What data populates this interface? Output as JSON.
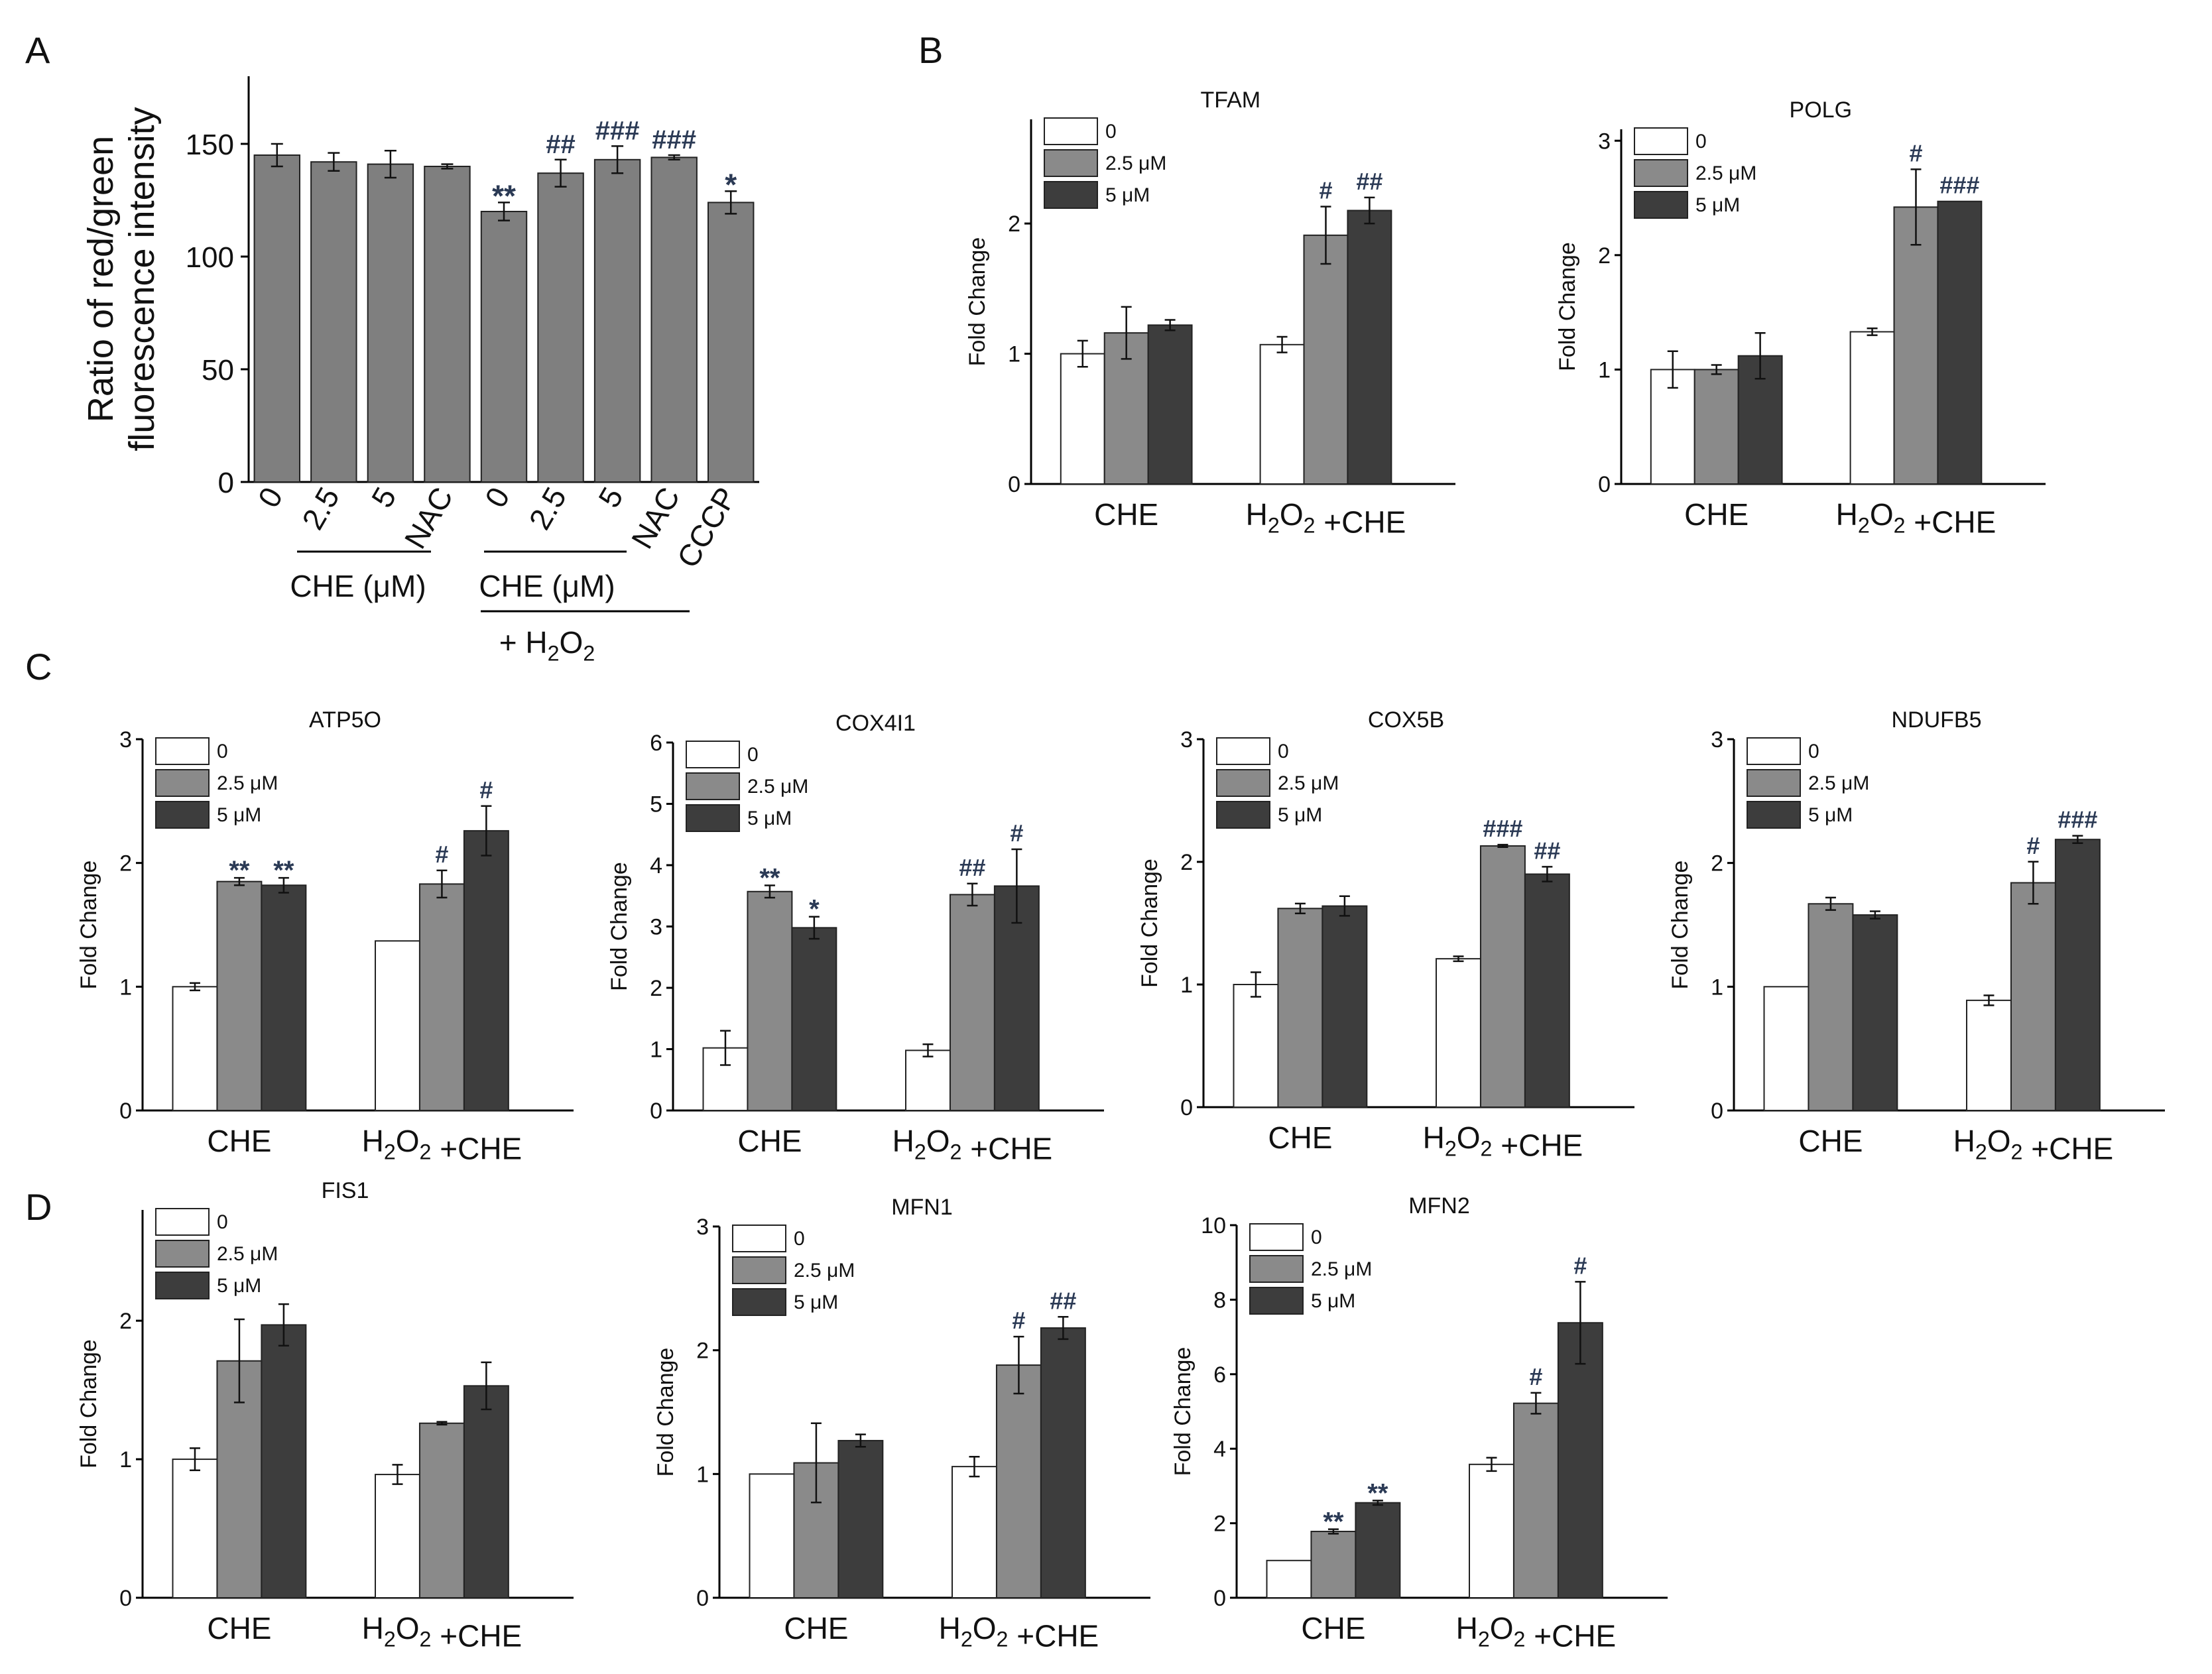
{
  "colors": {
    "c0": "#ffffff",
    "c1": "#8a8a8a",
    "c2": "#3d3d3d",
    "panelA": "#7f7f7f",
    "sig": "#2b3a55",
    "axis": "#000000"
  },
  "panel_letters": {
    "A": "A",
    "B": "B",
    "C": "C",
    "D": "D"
  },
  "legend_labels": [
    "0",
    "2.5 μM",
    "5 μM"
  ],
  "group_labels": {
    "che": "CHE",
    "h2o2_che": "H2O2 +CHE"
  },
  "panelA_group_labels": {
    "che_unit": "CHE (μM)",
    "che_unit2": "CHE (μM)",
    "h2o2": "+ H2O2"
  },
  "chart_data": [
    {
      "id": "A",
      "type": "bar",
      "title": "",
      "ylabel": "Ratio of  red/green fluorescence intensity",
      "ylabel_lines": [
        "Ratio of  red/green",
        "fluorescence intensity"
      ],
      "ylim": [
        0,
        180
      ],
      "yticks": [
        0,
        50,
        100,
        150
      ],
      "categories": [
        "0",
        "2.5",
        "5",
        "NAC",
        "0",
        "2.5",
        "5",
        "NAC",
        "CCCP"
      ],
      "values": [
        145,
        142,
        141,
        140,
        120,
        137,
        143,
        144,
        124
      ],
      "errors": [
        5,
        4,
        6,
        1,
        4,
        6,
        6,
        1,
        5
      ],
      "annotations": [
        "",
        "",
        "",
        "",
        "**",
        "##",
        "###",
        "###",
        "*"
      ]
    },
    {
      "id": "TFAM",
      "type": "bar",
      "title": "TFAM",
      "ylabel": "Fold Change",
      "ylim": [
        0,
        2.8
      ],
      "yticks": [
        0,
        1,
        2
      ],
      "categories": [
        "CHE",
        "H2O2 +CHE"
      ],
      "series": [
        {
          "name": "0",
          "values": [
            1.0,
            1.07
          ],
          "errors": [
            0.1,
            0.06
          ],
          "annotations": [
            "",
            ""
          ]
        },
        {
          "name": "2.5 μM",
          "values": [
            1.16,
            1.91
          ],
          "errors": [
            0.2,
            0.22
          ],
          "annotations": [
            "",
            "#"
          ]
        },
        {
          "name": "5 μM",
          "values": [
            1.22,
            2.1
          ],
          "errors": [
            0.04,
            0.1
          ],
          "annotations": [
            "",
            "##"
          ]
        }
      ]
    },
    {
      "id": "POLG",
      "type": "bar",
      "title": "POLG",
      "ylabel": "Fold Change",
      "ylim": [
        0,
        3.1
      ],
      "yticks": [
        0,
        1,
        2,
        3
      ],
      "categories": [
        "CHE",
        "H2O2 +CHE"
      ],
      "series": [
        {
          "name": "0",
          "values": [
            1.0,
            1.33
          ],
          "errors": [
            0.16,
            0.03
          ],
          "annotations": [
            "",
            ""
          ]
        },
        {
          "name": "2.5 μM",
          "values": [
            1.0,
            2.42
          ],
          "errors": [
            0.04,
            0.33
          ],
          "annotations": [
            "",
            "#"
          ]
        },
        {
          "name": "5 μM",
          "values": [
            1.12,
            2.47
          ],
          "errors": [
            0.2,
            0.0
          ],
          "annotations": [
            "",
            "###"
          ]
        }
      ]
    },
    {
      "id": "ATP5O",
      "type": "bar",
      "title": "ATP5O",
      "ylabel": "Fold Change",
      "ylim": [
        0,
        3
      ],
      "yticks": [
        0,
        1,
        2,
        3
      ],
      "categories": [
        "CHE",
        "H2O2 +CHE"
      ],
      "series": [
        {
          "name": "0",
          "values": [
            1.0,
            1.37
          ],
          "errors": [
            0.03,
            0.0
          ],
          "annotations": [
            "",
            ""
          ]
        },
        {
          "name": "2.5 μM",
          "values": [
            1.85,
            1.83
          ],
          "errors": [
            0.03,
            0.11
          ],
          "annotations": [
            "**",
            "#"
          ]
        },
        {
          "name": "5 μM",
          "values": [
            1.82,
            2.26
          ],
          "errors": [
            0.06,
            0.2
          ],
          "annotations": [
            "**",
            "#"
          ]
        }
      ]
    },
    {
      "id": "COX4I1",
      "type": "bar",
      "title": "COX4I1",
      "ylabel": "Fold Change",
      "ylim": [
        0,
        6
      ],
      "yticks": [
        0,
        1,
        2,
        3,
        4,
        5,
        6
      ],
      "categories": [
        "CHE",
        "H2O2 +CHE"
      ],
      "series": [
        {
          "name": "0",
          "values": [
            1.02,
            0.98
          ],
          "errors": [
            0.28,
            0.1
          ],
          "annotations": [
            "",
            ""
          ]
        },
        {
          "name": "2.5 μM",
          "values": [
            3.57,
            3.52
          ],
          "errors": [
            0.1,
            0.18
          ],
          "annotations": [
            "**",
            "##"
          ]
        },
        {
          "name": "5 μM",
          "values": [
            2.98,
            3.66
          ],
          "errors": [
            0.18,
            0.6
          ],
          "annotations": [
            "*",
            "#"
          ]
        }
      ]
    },
    {
      "id": "COX5B",
      "type": "bar",
      "title": "COX5B",
      "ylabel": "Fold Change",
      "ylim": [
        0,
        3
      ],
      "yticks": [
        0,
        1,
        2,
        3
      ],
      "categories": [
        "CHE",
        "H2O2 +CHE"
      ],
      "series": [
        {
          "name": "0",
          "values": [
            1.0,
            1.21
          ],
          "errors": [
            0.1,
            0.02
          ],
          "annotations": [
            "",
            ""
          ]
        },
        {
          "name": "2.5 μM",
          "values": [
            1.62,
            2.13
          ],
          "errors": [
            0.04,
            0.01
          ],
          "annotations": [
            "",
            "###"
          ]
        },
        {
          "name": "5 μM",
          "values": [
            1.64,
            1.9
          ],
          "errors": [
            0.08,
            0.06
          ],
          "annotations": [
            "",
            "##"
          ]
        }
      ]
    },
    {
      "id": "NDUFB5",
      "type": "bar",
      "title": "NDUFB5",
      "ylabel": "Fold Change",
      "ylim": [
        0,
        3
      ],
      "yticks": [
        0,
        1,
        2,
        3
      ],
      "categories": [
        "CHE",
        "H2O2 +CHE"
      ],
      "series": [
        {
          "name": "0",
          "values": [
            1.0,
            0.89
          ],
          "errors": [
            0.0,
            0.04
          ],
          "annotations": [
            "",
            ""
          ]
        },
        {
          "name": "2.5 μM",
          "values": [
            1.67,
            1.84
          ],
          "errors": [
            0.05,
            0.17
          ],
          "annotations": [
            "",
            "#"
          ]
        },
        {
          "name": "5 μM",
          "values": [
            1.58,
            2.19
          ],
          "errors": [
            0.03,
            0.03
          ],
          "annotations": [
            "",
            "###"
          ]
        }
      ]
    },
    {
      "id": "FIS1",
      "type": "bar",
      "title": "FIS1",
      "ylabel": "Fold Change",
      "ylim": [
        0,
        2.8
      ],
      "yticks": [
        0,
        1,
        2
      ],
      "categories": [
        "CHE",
        "H2O2 +CHE"
      ],
      "series": [
        {
          "name": "0",
          "values": [
            1.0,
            0.89
          ],
          "errors": [
            0.08,
            0.07
          ],
          "annotations": [
            "",
            ""
          ]
        },
        {
          "name": "2.5 μM",
          "values": [
            1.71,
            1.26
          ],
          "errors": [
            0.3,
            0.01
          ],
          "annotations": [
            "",
            ""
          ]
        },
        {
          "name": "5 μM",
          "values": [
            1.97,
            1.53
          ],
          "errors": [
            0.15,
            0.17
          ],
          "annotations": [
            "",
            ""
          ]
        }
      ]
    },
    {
      "id": "MFN1",
      "type": "bar",
      "title": "MFN1",
      "ylabel": "Fold Change",
      "ylim": [
        0,
        3
      ],
      "yticks": [
        0,
        1,
        2,
        3
      ],
      "categories": [
        "CHE",
        "H2O2 +CHE"
      ],
      "series": [
        {
          "name": "0",
          "values": [
            1.0,
            1.06
          ],
          "errors": [
            0.0,
            0.08
          ],
          "annotations": [
            "",
            ""
          ]
        },
        {
          "name": "2.5 μM",
          "values": [
            1.09,
            1.88
          ],
          "errors": [
            0.32,
            0.23
          ],
          "annotations": [
            "",
            "#"
          ]
        },
        {
          "name": "5 μM",
          "values": [
            1.27,
            2.18
          ],
          "errors": [
            0.05,
            0.09
          ],
          "annotations": [
            "",
            "##"
          ]
        }
      ]
    },
    {
      "id": "MFN2",
      "type": "bar",
      "title": "MFN2",
      "ylabel": "Fold Change",
      "ylim": [
        0,
        10
      ],
      "yticks": [
        0,
        2,
        4,
        6,
        8,
        10
      ],
      "categories": [
        "CHE",
        "H2O2 +CHE"
      ],
      "series": [
        {
          "name": "0",
          "values": [
            1.0,
            3.58
          ],
          "errors": [
            0.0,
            0.18
          ],
          "annotations": [
            "",
            ""
          ]
        },
        {
          "name": "2.5 μM",
          "values": [
            1.78,
            5.22
          ],
          "errors": [
            0.06,
            0.28
          ],
          "annotations": [
            "**",
            "#"
          ]
        },
        {
          "name": "5 μM",
          "values": [
            2.55,
            7.38
          ],
          "errors": [
            0.06,
            1.1
          ],
          "annotations": [
            "**",
            "#"
          ]
        }
      ]
    }
  ]
}
